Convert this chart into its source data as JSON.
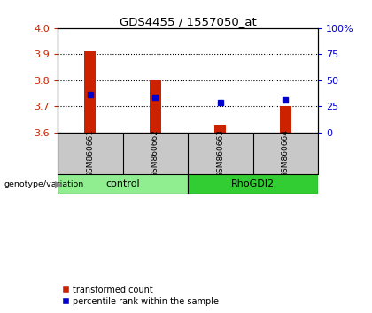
{
  "title": "GDS4455 / 1557050_at",
  "samples": [
    "GSM860661",
    "GSM860662",
    "GSM860663",
    "GSM860664"
  ],
  "red_values": [
    3.91,
    3.8,
    3.63,
    3.7
  ],
  "blue_values": [
    3.745,
    3.735,
    3.715,
    3.725
  ],
  "y_min": 3.6,
  "y_max": 4.0,
  "y_ticks": [
    3.6,
    3.7,
    3.8,
    3.9,
    4.0
  ],
  "right_y_ticks": [
    0,
    25,
    50,
    75,
    100
  ],
  "right_y_labels": [
    "0",
    "25",
    "50",
    "75",
    "100%"
  ],
  "groups": [
    {
      "label": "control",
      "samples": [
        0,
        1
      ],
      "color": "#90EE90"
    },
    {
      "label": "RhoGDI2",
      "samples": [
        2,
        3
      ],
      "color": "#32CD32"
    }
  ],
  "bar_color": "#CC2200",
  "marker_color": "#0000CC",
  "bar_width": 0.18,
  "plot_bg": "#FFFFFF",
  "tick_area_bg": "#C8C8C8",
  "left_axis_color": "#CC2200",
  "right_axis_color": "#0000CC",
  "legend_red_label": "transformed count",
  "legend_blue_label": "percentile rank within the sample",
  "genotype_label": "genotype/variation"
}
